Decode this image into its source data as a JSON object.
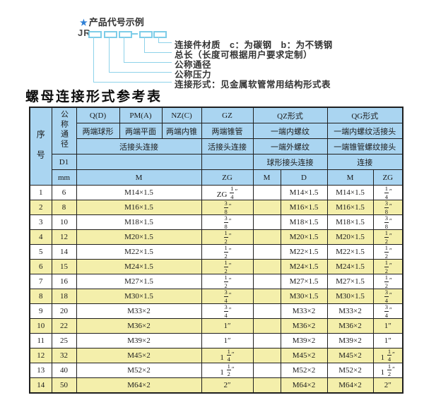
{
  "diagram": {
    "star": "★",
    "heading": "产品代号示例",
    "prefix": "JR",
    "labels": [
      "连接件材质　c：为碳钢　b：为不锈钢",
      "总长（长度可根据用户要求定制）",
      "公称通径",
      "公称压力",
      "连接形式：见金属软管常用结构形式表"
    ]
  },
  "table_title": "螺母连接形式参考表",
  "table": {
    "header": {
      "seq": "序号",
      "dn": "公称通径",
      "d1": "D1",
      "mm": "mm",
      "q": "Q(D)",
      "q_desc": "两端球形",
      "pm": "PM(A)",
      "pm_desc": "两端平面",
      "nz": "NZ(C)",
      "nz_desc": "两端内锥",
      "qpn_row3": "活接头连接",
      "m_unit": "M",
      "gz": "GZ",
      "gz_desc": "两端锥管",
      "gz_row3": "活接头连接",
      "zg_unit": "ZG",
      "qz": "QZ形式",
      "qz_desc": "一端内螺纹",
      "qz_row3": "一端外螺纹",
      "qz_row4": "球形接头连接",
      "qz_m": "M",
      "qz_d": "D",
      "qg": "QG形式",
      "qg_desc": "一端内螺纹活接头",
      "qg_row3": "一端锥管螺纹接头",
      "qg_row4": "连接",
      "qg_m": "M",
      "qg_zg": "ZG"
    },
    "rows": [
      [
        "1",
        "6",
        "M14×1.5",
        "ZG 1/4″",
        "",
        "M14×1.5",
        "M14×1.5",
        "1/4″"
      ],
      [
        "2",
        "8",
        "M16×1.5",
        "3/8″",
        "",
        "M16×1.5",
        "M16×1.5",
        "3/8″"
      ],
      [
        "3",
        "10",
        "M18×1.5",
        "3/8″",
        "",
        "M18×1.5",
        "M18×1.5",
        "3/8″"
      ],
      [
        "4",
        "12",
        "M20×1.5",
        "1/2″",
        "",
        "M20×1.5",
        "M20×1.5",
        "1/2″"
      ],
      [
        "5",
        "14",
        "M22×1.5",
        "1/2″",
        "",
        "M22×1.5",
        "M22×1.5",
        "1/2″"
      ],
      [
        "6",
        "15",
        "M24×1.5",
        "1/2″",
        "",
        "M24×1.5",
        "M24×1.5",
        "1/2″"
      ],
      [
        "7",
        "16",
        "M27×1.5",
        "1/2″",
        "",
        "M27×1.5",
        "M27×1.5",
        "1/2″"
      ],
      [
        "8",
        "18",
        "M30×1.5",
        "3/4″",
        "",
        "M30×1.5",
        "M30×1.5",
        "3/4″"
      ],
      [
        "9",
        "20",
        "M33×2",
        "3/4″",
        "",
        "M33×2",
        "M33×2",
        "3/4″"
      ],
      [
        "10",
        "22",
        "M36×2",
        "1″",
        "",
        "M36×2",
        "M36×2",
        "1″"
      ],
      [
        "11",
        "25",
        "M39×2",
        "1″",
        "",
        "M39×2",
        "M39×2",
        "1″"
      ],
      [
        "12",
        "32",
        "M45×2",
        "1 1/4″",
        "",
        "M45×2",
        "M45×2",
        "1 1/4″"
      ],
      [
        "13",
        "40",
        "M52×2",
        "1 1/2″",
        "",
        "M52×2",
        "M52×2",
        "1 1/2″"
      ],
      [
        "14",
        "50",
        "M64×2",
        "2″",
        "",
        "M64×2",
        "M64×2",
        "2″"
      ]
    ]
  },
  "colors": {
    "header_bg": "#aad5f1",
    "stripe_yellow": "#f4efab",
    "border": "#1f1f1f",
    "leader_cyan": "#7ecde8",
    "star_blue": "#2d7fd6"
  }
}
